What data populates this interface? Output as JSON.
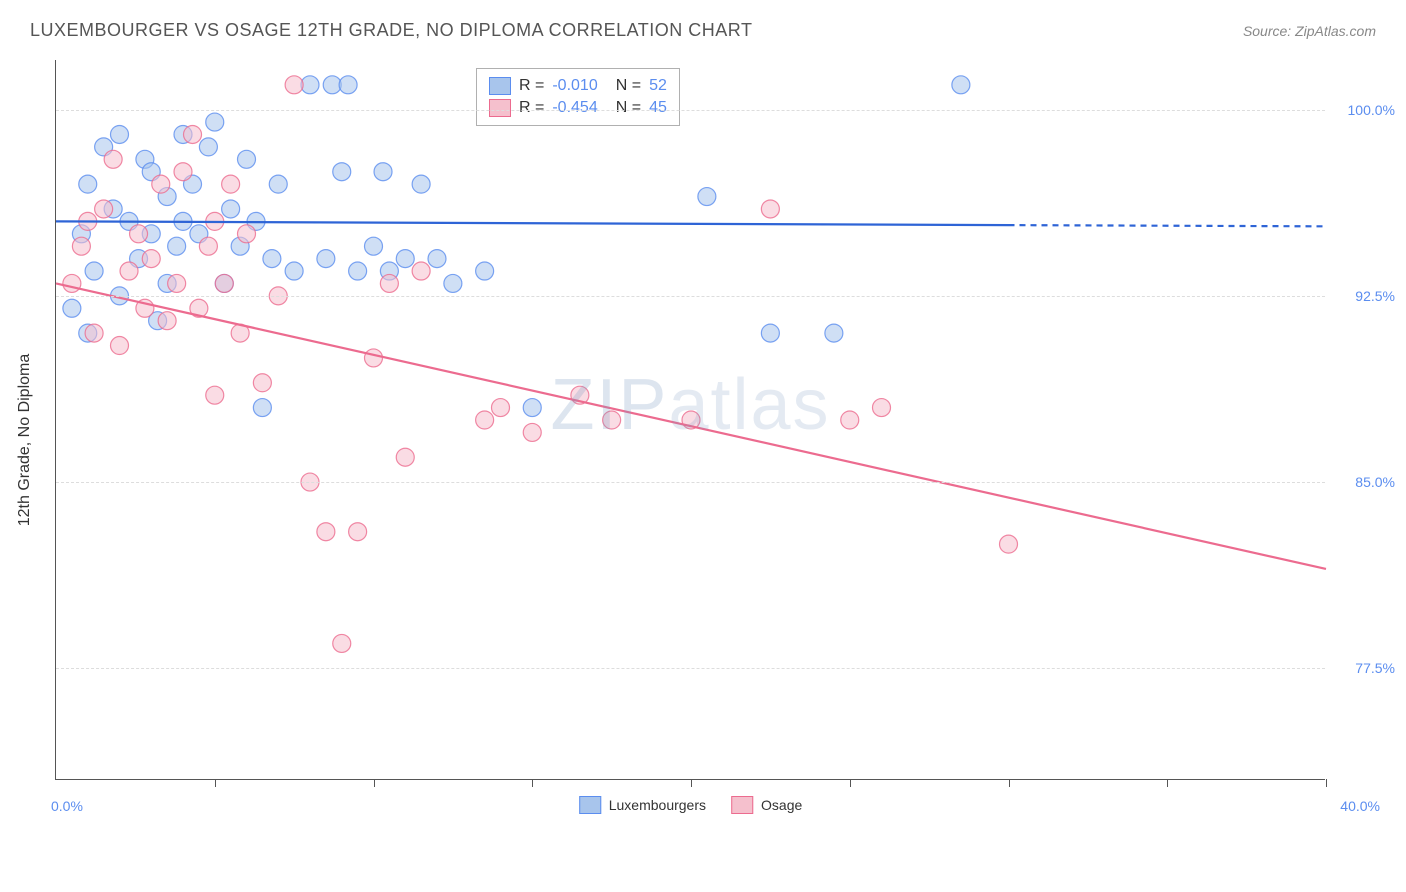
{
  "title": "LUXEMBOURGER VS OSAGE 12TH GRADE, NO DIPLOMA CORRELATION CHART",
  "source": "Source: ZipAtlas.com",
  "watermark": "ZIPatlas",
  "chart": {
    "type": "scatter",
    "ylabel": "12th Grade, No Diploma",
    "background_color": "#ffffff",
    "grid_color": "#dddddd",
    "axis_color": "#555555",
    "label_color": "#333333",
    "tick_label_color": "#5b8def",
    "title_fontsize": 18,
    "label_fontsize": 16,
    "tick_fontsize": 14,
    "xlim": [
      0,
      40
    ],
    "ylim": [
      73,
      102
    ],
    "x_ticks": [
      0,
      5,
      10,
      15,
      20,
      25,
      30,
      35,
      40
    ],
    "x_labels": {
      "min": "0.0%",
      "max": "40.0%"
    },
    "y_gridlines": [
      77.5,
      85.0,
      92.5,
      100.0
    ],
    "y_tick_labels": [
      "77.5%",
      "85.0%",
      "92.5%",
      "100.0%"
    ],
    "marker_radius": 9,
    "marker_opacity": 0.55,
    "line_width": 2.2,
    "series": [
      {
        "name": "Luxembourgers",
        "color_fill": "#a8c5ec",
        "color_stroke": "#5b8def",
        "line_color": "#2e64d6",
        "R": "-0.010",
        "N": "52",
        "trend": {
          "x1": 0,
          "y1": 95.5,
          "x2": 40,
          "y2": 95.3,
          "solid_until_x": 30
        },
        "points": [
          [
            0.5,
            92.0
          ],
          [
            0.8,
            95.0
          ],
          [
            1.0,
            97.0
          ],
          [
            1.2,
            93.5
          ],
          [
            1.5,
            98.5
          ],
          [
            1.8,
            96.0
          ],
          [
            2.0,
            99.0
          ],
          [
            2.3,
            95.5
          ],
          [
            2.6,
            94.0
          ],
          [
            2.8,
            98.0
          ],
          [
            3.0,
            97.5
          ],
          [
            3.2,
            91.5
          ],
          [
            3.5,
            96.5
          ],
          [
            3.8,
            94.5
          ],
          [
            4.0,
            99.0
          ],
          [
            4.3,
            97.0
          ],
          [
            4.5,
            95.0
          ],
          [
            4.8,
            98.5
          ],
          [
            5.0,
            99.5
          ],
          [
            5.3,
            93.0
          ],
          [
            5.5,
            96.0
          ],
          [
            5.8,
            94.5
          ],
          [
            6.0,
            98.0
          ],
          [
            6.3,
            95.5
          ],
          [
            6.5,
            88.0
          ],
          [
            6.8,
            94.0
          ],
          [
            7.0,
            97.0
          ],
          [
            7.5,
            93.5
          ],
          [
            8.0,
            101.0
          ],
          [
            8.5,
            94.0
          ],
          [
            8.7,
            101.0
          ],
          [
            9.0,
            97.5
          ],
          [
            9.2,
            101.0
          ],
          [
            9.5,
            93.5
          ],
          [
            10.0,
            94.5
          ],
          [
            10.3,
            97.5
          ],
          [
            10.5,
            93.5
          ],
          [
            11.0,
            94.0
          ],
          [
            11.5,
            97.0
          ],
          [
            12.0,
            94.0
          ],
          [
            12.5,
            93.0
          ],
          [
            13.5,
            93.5
          ],
          [
            15.0,
            88.0
          ],
          [
            20.5,
            96.5
          ],
          [
            22.5,
            91.0
          ],
          [
            24.5,
            91.0
          ],
          [
            28.5,
            101.0
          ],
          [
            1.0,
            91.0
          ],
          [
            2.0,
            92.5
          ],
          [
            3.0,
            95.0
          ],
          [
            3.5,
            93.0
          ],
          [
            4.0,
            95.5
          ]
        ]
      },
      {
        "name": "Osage",
        "color_fill": "#f5c0cd",
        "color_stroke": "#ec6b8f",
        "line_color": "#ec6b8f",
        "R": "-0.454",
        "N": "45",
        "trend": {
          "x1": 0,
          "y1": 93.0,
          "x2": 40,
          "y2": 81.5,
          "solid_until_x": 40
        },
        "points": [
          [
            0.5,
            93.0
          ],
          [
            0.8,
            94.5
          ],
          [
            1.0,
            95.5
          ],
          [
            1.2,
            91.0
          ],
          [
            1.5,
            96.0
          ],
          [
            1.8,
            98.0
          ],
          [
            2.0,
            90.5
          ],
          [
            2.3,
            93.5
          ],
          [
            2.6,
            95.0
          ],
          [
            2.8,
            92.0
          ],
          [
            3.0,
            94.0
          ],
          [
            3.3,
            97.0
          ],
          [
            3.5,
            91.5
          ],
          [
            3.8,
            93.0
          ],
          [
            4.0,
            97.5
          ],
          [
            4.3,
            99.0
          ],
          [
            4.5,
            92.0
          ],
          [
            4.8,
            94.5
          ],
          [
            5.0,
            88.5
          ],
          [
            5.3,
            93.0
          ],
          [
            5.5,
            97.0
          ],
          [
            5.8,
            91.0
          ],
          [
            6.0,
            95.0
          ],
          [
            6.5,
            89.0
          ],
          [
            7.0,
            92.5
          ],
          [
            7.5,
            101.0
          ],
          [
            8.0,
            85.0
          ],
          [
            8.5,
            83.0
          ],
          [
            9.5,
            83.0
          ],
          [
            9.0,
            78.5
          ],
          [
            10.0,
            90.0
          ],
          [
            10.5,
            93.0
          ],
          [
            11.0,
            86.0
          ],
          [
            11.5,
            93.5
          ],
          [
            13.5,
            87.5
          ],
          [
            14.0,
            88.0
          ],
          [
            15.0,
            87.0
          ],
          [
            16.5,
            88.5
          ],
          [
            17.5,
            87.5
          ],
          [
            20.0,
            87.5
          ],
          [
            22.5,
            96.0
          ],
          [
            25.0,
            87.5
          ],
          [
            26.0,
            88.0
          ],
          [
            30.0,
            82.5
          ],
          [
            5.0,
            95.5
          ]
        ]
      }
    ],
    "bottom_legend": [
      {
        "label": "Luxembourgers",
        "fill": "#a8c5ec",
        "stroke": "#5b8def"
      },
      {
        "label": "Osage",
        "fill": "#f5c0cd",
        "stroke": "#ec6b8f"
      }
    ]
  }
}
